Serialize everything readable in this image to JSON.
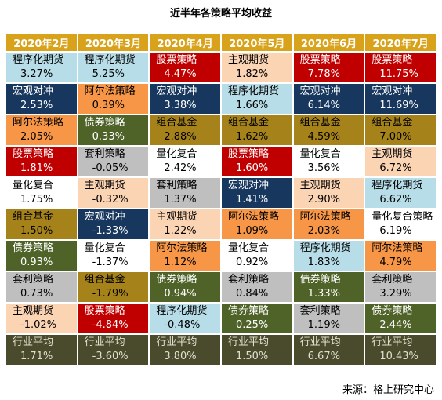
{
  "title": "近半年各策略平均收益",
  "table": {
    "headers": [
      "2020年2月",
      "2020年3月",
      "2020年4月",
      "2020年5月",
      "2020年6月",
      "2020年7月"
    ],
    "rows": [
      [
        {
          "name": "程序化期货",
          "value": "3.27%"
        },
        {
          "name": "程序化期货",
          "value": "5.25%"
        },
        {
          "name": "股票策略",
          "value": "4.47%"
        },
        {
          "name": "主观期货",
          "value": "1.82%"
        },
        {
          "name": "股票策略",
          "value": "7.78%"
        },
        {
          "name": "股票策略",
          "value": "11.75%"
        }
      ],
      [
        {
          "name": "宏观对冲",
          "value": "2.53%"
        },
        {
          "name": "阿尔法策略",
          "value": "0.39%"
        },
        {
          "name": "宏观对冲",
          "value": "3.38%"
        },
        {
          "name": "程序化期货",
          "value": "1.66%"
        },
        {
          "name": "宏观对冲",
          "value": "6.14%"
        },
        {
          "name": "宏观对冲",
          "value": "11.69%"
        }
      ],
      [
        {
          "name": "阿尔法策略",
          "value": "2.05%"
        },
        {
          "name": "债券策略",
          "value": "0.33%"
        },
        {
          "name": "组合基金",
          "value": "2.88%"
        },
        {
          "name": "组合基金",
          "value": "1.62%"
        },
        {
          "name": "组合基金",
          "value": "4.59%"
        },
        {
          "name": "组合基金",
          "value": "7.00%"
        }
      ],
      [
        {
          "name": "股票策略",
          "value": "1.81%"
        },
        {
          "name": "套利策略",
          "value": "-0.05%"
        },
        {
          "name": "量化复合",
          "value": "2.42%"
        },
        {
          "name": "股票策略",
          "value": "1.60%"
        },
        {
          "name": "量化复合",
          "value": "3.56%"
        },
        {
          "name": "主观期货",
          "value": "6.72%"
        }
      ],
      [
        {
          "name": "量化复合",
          "value": "1.75%"
        },
        {
          "name": "主观期货",
          "value": "-0.32%"
        },
        {
          "name": "套利策略",
          "value": "1.37%"
        },
        {
          "name": "宏观对冲",
          "value": "1.41%"
        },
        {
          "name": "主观期货",
          "value": "2.90%"
        },
        {
          "name": "程序化期货",
          "value": "6.62%"
        }
      ],
      [
        {
          "name": "组合基金",
          "value": "1.50%"
        },
        {
          "name": "宏观对冲",
          "value": "-1.33%"
        },
        {
          "name": "主观期货",
          "value": "1.22%"
        },
        {
          "name": "阿尔法策略",
          "value": "1.09%"
        },
        {
          "name": "阿尔法策略",
          "value": "2.03%"
        },
        {
          "name": "量化复合策略",
          "value": "6.19%"
        }
      ],
      [
        {
          "name": "债券策略",
          "value": "0.93%"
        },
        {
          "name": "量化复合",
          "value": "-1.37%"
        },
        {
          "name": "阿尔法策略",
          "value": "1.12%"
        },
        {
          "name": "量化复合",
          "value": "0.92%"
        },
        {
          "name": "程序化期货",
          "value": "1.83%"
        },
        {
          "name": "阿尔法策略",
          "value": "4.79%"
        }
      ],
      [
        {
          "name": "套利策略",
          "value": "0.73%"
        },
        {
          "name": "组合基金",
          "value": "-1.79%"
        },
        {
          "name": "债券策略",
          "value": "0.94%"
        },
        {
          "name": "套利策略",
          "value": "0.84%"
        },
        {
          "name": "债券策略",
          "value": "1.33%"
        },
        {
          "name": "套利策略",
          "value": "3.29%"
        }
      ],
      [
        {
          "name": "主观期货",
          "value": "-1.02%"
        },
        {
          "name": "股票策略",
          "value": "-4.84%"
        },
        {
          "name": "程序化期货",
          "value": "-0.48%"
        },
        {
          "name": "债券策略",
          "value": "0.25%"
        },
        {
          "name": "套利策略",
          "value": "1.19%"
        },
        {
          "name": "债券策略",
          "value": "2.44%"
        }
      ],
      [
        {
          "name": "行业平均",
          "value": "1.71%"
        },
        {
          "name": "行业平均",
          "value": "-3.60%"
        },
        {
          "name": "行业平均",
          "value": "3.80%"
        },
        {
          "name": "行业平均",
          "value": "1.50%"
        },
        {
          "name": "行业平均",
          "value": "6.67%"
        },
        {
          "name": "行业平均",
          "value": "10.43%"
        }
      ]
    ],
    "colors": {
      "程序化期货": [
        "#b7dde8",
        "#000000"
      ],
      "股票策略": [
        "#c00000",
        "#ffffff"
      ],
      "主观期货": [
        "#fbd4b4",
        "#000000"
      ],
      "宏观对冲": [
        "#17375e",
        "#ffffff"
      ],
      "阿尔法策略": [
        "#f79646",
        "#000000"
      ],
      "债券策略": [
        "#4f6228",
        "#ffffff"
      ],
      "组合基金": [
        "#a6831a",
        "#000000"
      ],
      "套利策略": [
        "#bfbfbf",
        "#000000"
      ],
      "量化复合": [
        "#ffffff",
        "#000000"
      ],
      "量化复合策略": [
        "#ffffff",
        "#000000"
      ],
      "行业平均": [
        "#4a4a2c",
        "#e0e0d0"
      ]
    },
    "header_color": [
      "#d9a21b",
      "#ffffff"
    ]
  },
  "source": "来源：格上研究中心"
}
